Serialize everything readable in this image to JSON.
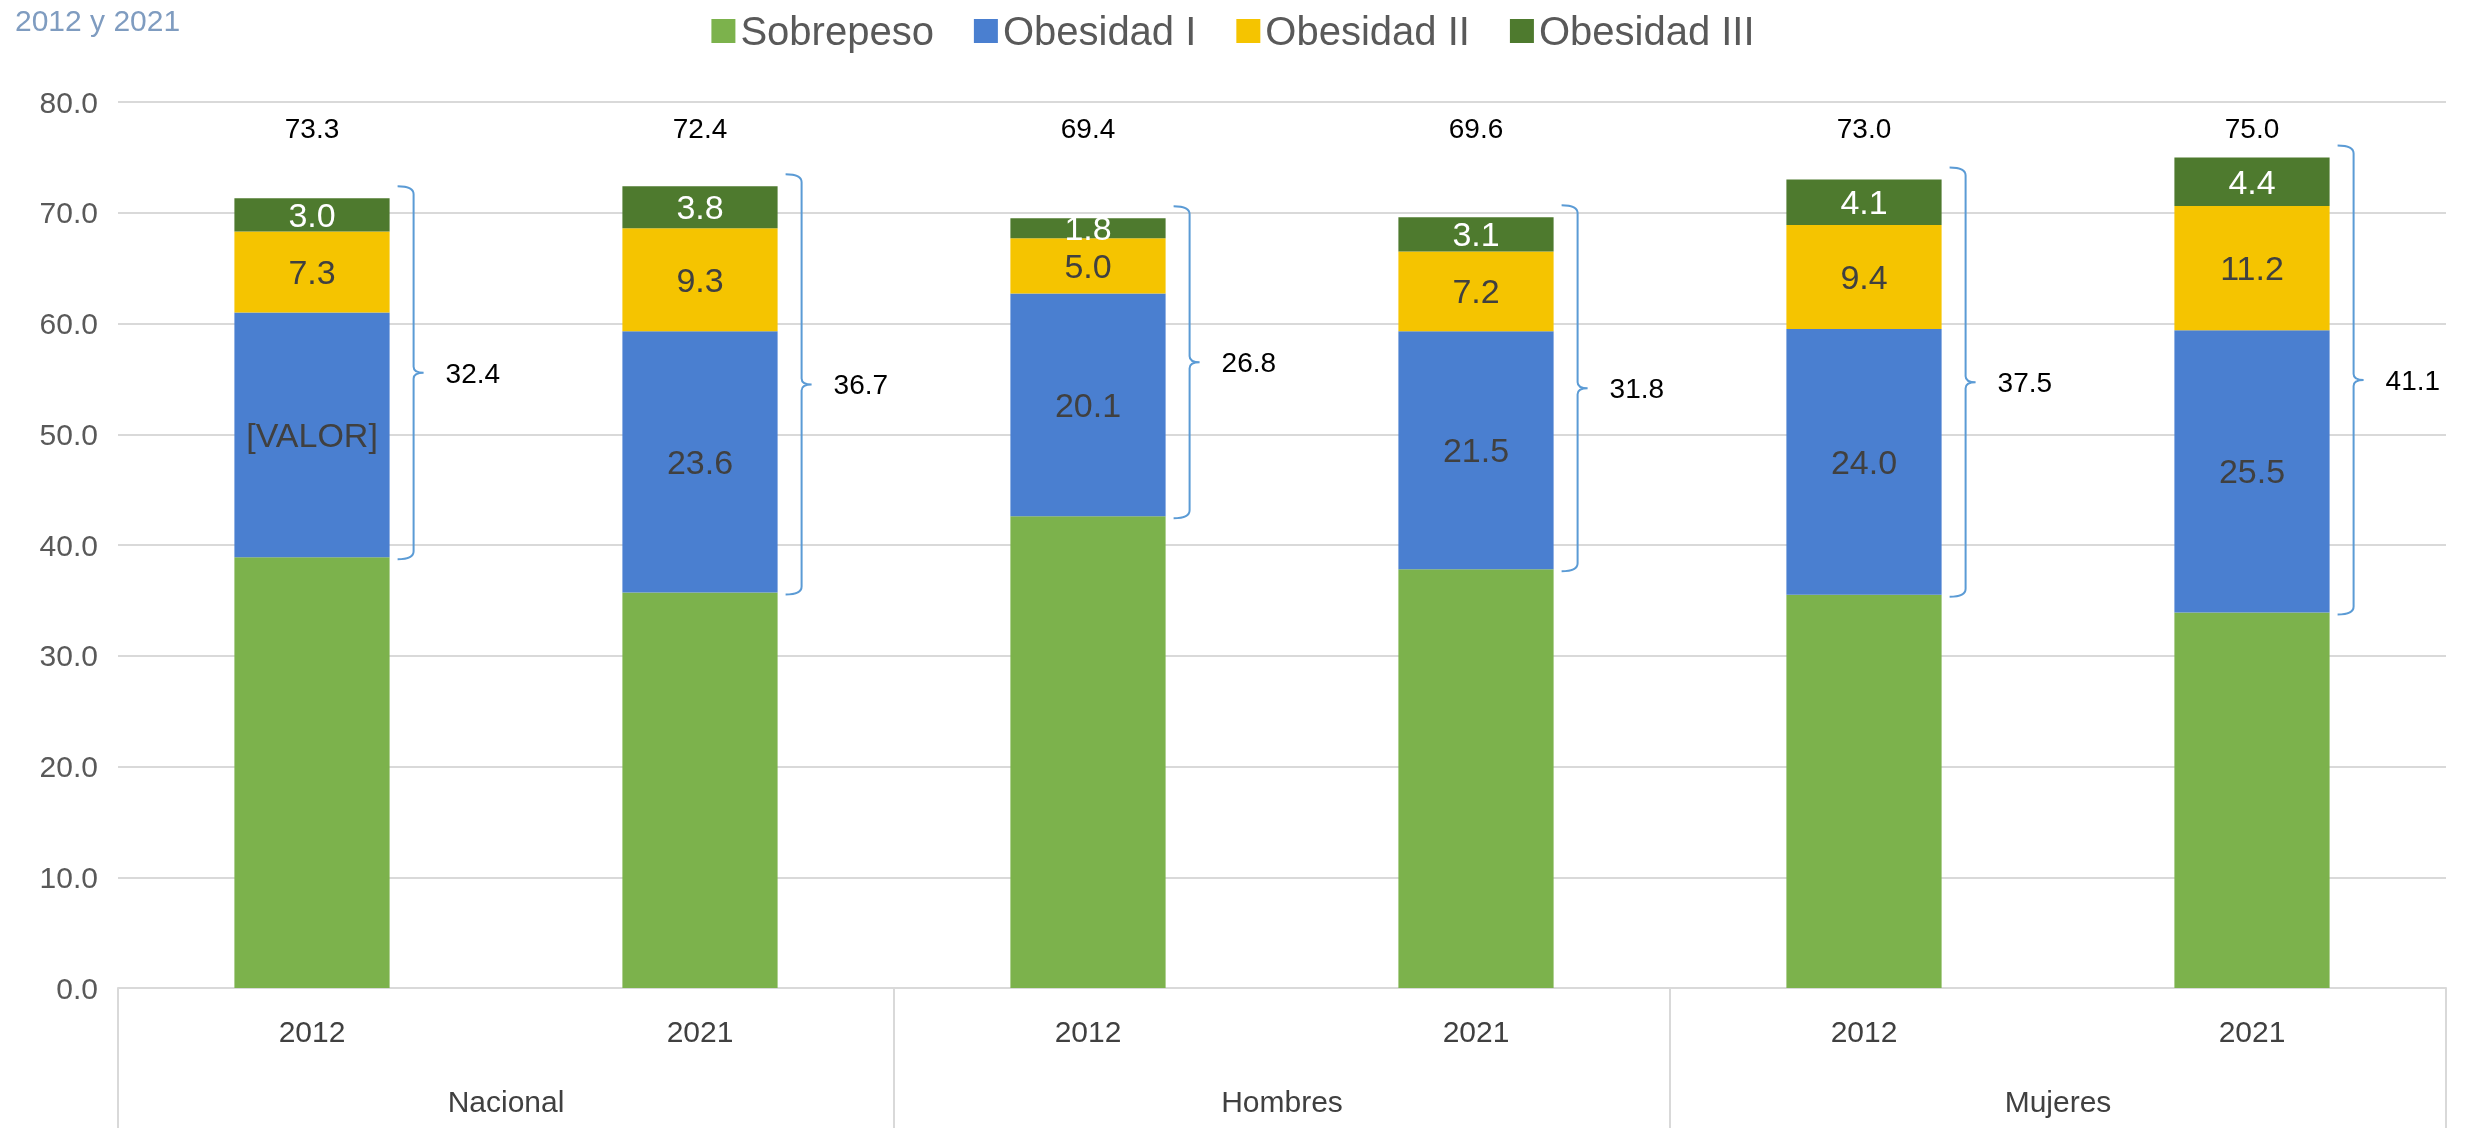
{
  "chart_data": {
    "type": "bar",
    "stacked": true,
    "title": "2012 y 2021",
    "categories": [
      "2012",
      "2021",
      "2012",
      "2021",
      "2012",
      "2021"
    ],
    "series": [
      {
        "name": "Sobrepeso",
        "color": "#7cb24c",
        "values": [
          38.9,
          35.7,
          42.6,
          37.8,
          35.5,
          33.9
        ]
      },
      {
        "name": "Obesidad I",
        "color": "#4a7fd0",
        "values": [
          22.1,
          23.6,
          20.1,
          21.5,
          24.0,
          25.5
        ],
        "value_labels": [
          "[VALOR]",
          "23.6",
          "20.1",
          "21.5",
          "24.0",
          "25.5"
        ]
      },
      {
        "name": "Obesidad II",
        "color": "#f5c400",
        "values": [
          7.3,
          9.3,
          5.0,
          7.2,
          9.4,
          11.2
        ],
        "value_labels": [
          "7.3",
          "9.3",
          "5.0",
          "7.2",
          "9.4",
          "11.2"
        ]
      },
      {
        "name": "Obesidad III",
        "color": "#4e7a2e",
        "values": [
          3.0,
          3.8,
          1.8,
          3.1,
          4.1,
          4.4
        ],
        "value_labels": [
          "3.0",
          "3.8",
          "1.8",
          "3.1",
          "4.1",
          "4.4"
        ]
      }
    ],
    "annotations": [
      "73.3",
      "72.4",
      "69.4",
      "69.6",
      "73.0",
      "75.0",
      "32.4",
      "36.7",
      "26.8",
      "31.8",
      "37.5",
      "41.1",
      "Nacional",
      "Hombres",
      "Mujeres"
    ],
    "ylim": [
      0,
      80
    ],
    "yticks": [
      {
        "value": 0,
        "label": "0.0"
      },
      {
        "value": 10,
        "label": "10.0"
      },
      {
        "value": 20,
        "label": "20.0"
      },
      {
        "value": 30,
        "label": "30.0"
      },
      {
        "value": 40,
        "label": "40.0"
      },
      {
        "value": 50,
        "label": "50.0"
      },
      {
        "value": 60,
        "label": "60.0"
      },
      {
        "value": 70,
        "label": "70.0"
      },
      {
        "value": 80,
        "label": "80.0"
      }
    ],
    "grid": "y",
    "legend": "top"
  }
}
